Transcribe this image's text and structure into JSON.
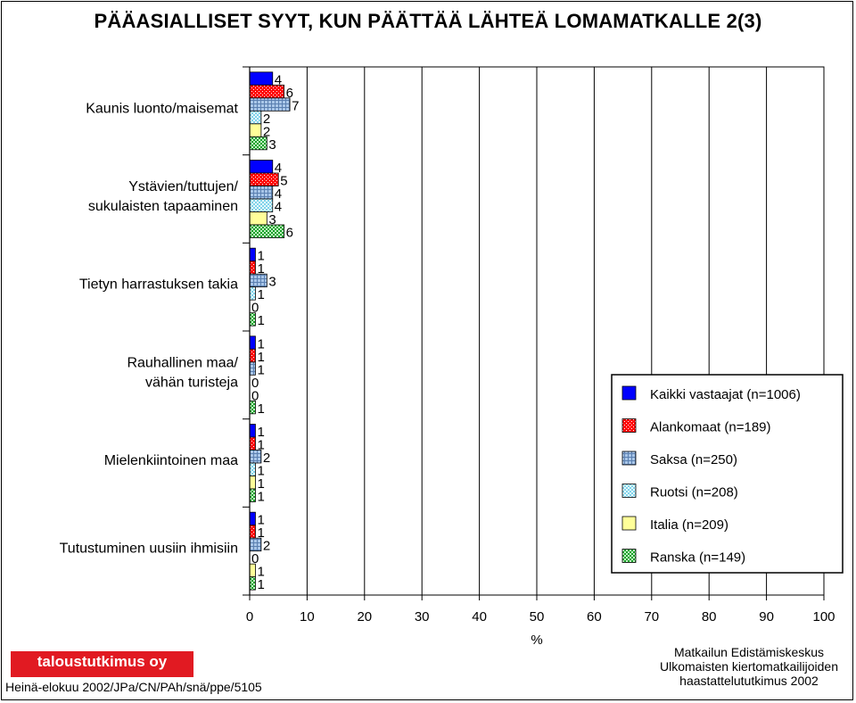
{
  "page": {
    "title": "PÄÄASIALLISET SYYT, KUN PÄÄTTÄÄ LÄHTEÄ LOMAMATKALLE  2(3)",
    "logo_text": "taloustutkimus oy",
    "footer_left": "Heinä-elokuu 2002/JPa/CN/PAh/snä/ppe/5105",
    "footer_right": [
      "Matkailun Edistämiskeskus",
      "Ulkomaisten kiertomatkailijoiden",
      "haastattelututkimus 2002"
    ]
  },
  "chart_data": {
    "type": "bar",
    "orientation": "horizontal",
    "categories": [
      [
        "Kaunis luonto/maisemat"
      ],
      [
        "Ystävien/tuttujen/",
        "sukulaisten tapaaminen"
      ],
      [
        "Tietyn harrastuksen takia"
      ],
      [
        "Rauhallinen maa/",
        "vähän turisteja"
      ],
      [
        "Mielenkiintoinen maa"
      ],
      [
        "Tutustuminen uusiin ihmisiin"
      ]
    ],
    "series": [
      {
        "name": "Kaikki vastaajat (n=1006)",
        "color": "#0000ff",
        "pattern": "solid",
        "values": [
          4,
          4,
          1,
          1,
          1,
          1
        ]
      },
      {
        "name": "Alankomaat (n=189)",
        "color": "#ff0000",
        "pattern": "dots",
        "values": [
          6,
          5,
          1,
          1,
          1,
          1
        ]
      },
      {
        "name": "Saksa (n=250)",
        "color": "#a9c6e8",
        "pattern": "grid",
        "values": [
          7,
          4,
          3,
          1,
          2,
          2
        ]
      },
      {
        "name": "Ruotsi (n=208)",
        "color": "#bfe8f2",
        "pattern": "checker",
        "values": [
          2,
          4,
          1,
          0,
          1,
          0
        ]
      },
      {
        "name": "Italia (n=209)",
        "color": "#ffff99",
        "pattern": "solid",
        "values": [
          2,
          3,
          0,
          0,
          1,
          1
        ]
      },
      {
        "name": "Ranska (n=149)",
        "color": "#33bb44",
        "pattern": "checker",
        "values": [
          3,
          6,
          1,
          1,
          1,
          1
        ]
      }
    ],
    "x_ticks": [
      0,
      10,
      20,
      30,
      40,
      50,
      60,
      70,
      80,
      90,
      100
    ],
    "xlabel": "%",
    "xlim": [
      0,
      100
    ],
    "grid": true,
    "legend_position": "right"
  }
}
